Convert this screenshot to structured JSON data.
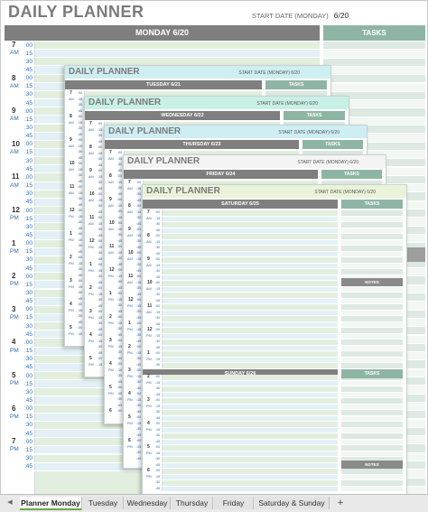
{
  "planner": {
    "title": "DAILY PLANNER",
    "start_date_label": "START DATE (MONDAY)",
    "start_date_value": "6/20",
    "day_header": "MONDAY 6/20",
    "tasks_label": "TASKS",
    "notes_label": "NOTES",
    "hours": [
      {
        "hour": "7",
        "ampm": "AM"
      },
      {
        "hour": "8",
        "ampm": "AM"
      },
      {
        "hour": "9",
        "ampm": "AM"
      },
      {
        "hour": "10",
        "ampm": "AM"
      },
      {
        "hour": "11",
        "ampm": "AM"
      },
      {
        "hour": "12",
        "ampm": "PM"
      },
      {
        "hour": "1",
        "ampm": "PM"
      },
      {
        "hour": "2",
        "ampm": "PM"
      },
      {
        "hour": "3",
        "ampm": "PM"
      },
      {
        "hour": "4",
        "ampm": "PM"
      },
      {
        "hour": "5",
        "ampm": "PM"
      },
      {
        "hour": "6",
        "ampm": "PM"
      },
      {
        "hour": "7",
        "ampm": "PM"
      }
    ],
    "minutes": [
      ":00",
      ":15",
      ":30",
      ":45"
    ]
  },
  "sheets": [
    {
      "day_header": "TUESDAY 6/21"
    },
    {
      "day_header": "WEDNESDAY 6/22"
    },
    {
      "day_header": "THURSDAY 6/23"
    },
    {
      "day_header": "FRIDAY 6/24"
    },
    {
      "day_header": "SATURDAY 6/25",
      "second_header": "SUNDAY 6/26"
    }
  ],
  "tabs": {
    "items": [
      "Planner Monday",
      "Tuesday",
      "Wednesday",
      "Thursday",
      "Friday",
      "Saturday & Sunday"
    ],
    "active_index": 0,
    "add_label": "+",
    "prev_label": "◀"
  },
  "colors": {
    "header_gray": "#7f7f7f",
    "tasks_green": "#8eb5a3",
    "row_green": "#e3efde",
    "row_blue": "#e3f1f6",
    "hour_text": "#2f6fb0"
  }
}
